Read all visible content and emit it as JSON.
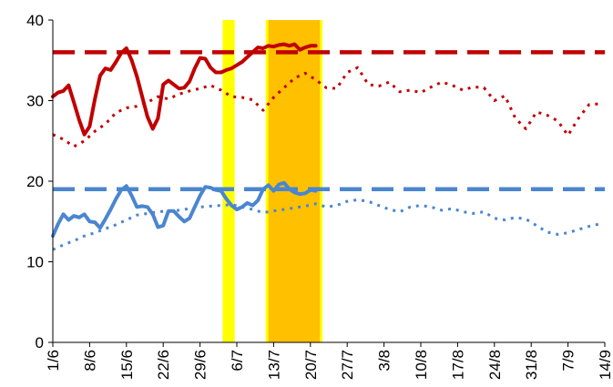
{
  "chart_data": {
    "type": "line",
    "title": "",
    "xlabel": "",
    "ylabel": "",
    "ylim": [
      0,
      40
    ],
    "yticks": [
      0,
      10,
      20,
      30,
      40
    ],
    "x_tick_labels": [
      "1/6",
      "8/6",
      "15/6",
      "22/6",
      "29/6",
      "6/7",
      "13/7",
      "20/7",
      "27/7",
      "3/8",
      "10/8",
      "17/8",
      "24/8",
      "31/8",
      "7/9",
      "14/9"
    ],
    "x_day_range": [
      1,
      106
    ],
    "grid": false,
    "legend": "none",
    "shaded_periods": [
      {
        "color": "#FFFF00",
        "start_day": 33.3,
        "end_day": 35.6
      },
      {
        "color": "#FFFF00",
        "start_day": 41.5,
        "end_day": 52.3
      },
      {
        "color": "#FFC000",
        "start_day": 42.0,
        "end_day": 51.8
      }
    ],
    "series": [
      {
        "color": "#C00000",
        "style": "solid",
        "x": [
          1,
          2,
          3,
          4,
          5,
          6,
          7,
          8,
          9,
          10,
          11,
          12,
          13,
          14,
          15,
          16,
          17,
          18,
          19,
          20,
          21,
          22,
          23,
          24,
          25,
          26,
          27,
          28,
          29,
          30,
          31,
          32,
          33,
          34,
          35,
          36,
          37,
          38,
          39,
          40,
          41,
          42,
          43,
          44,
          45,
          46,
          47,
          48,
          49,
          50,
          51
        ],
        "values": [
          30.5,
          31.0,
          31.2,
          31.9,
          29.8,
          27.6,
          25.8,
          26.8,
          30.2,
          33.1,
          34.0,
          33.8,
          34.8,
          35.9,
          36.5,
          35.0,
          33.0,
          30.5,
          28.0,
          26.5,
          27.8,
          32.0,
          32.5,
          32.0,
          31.5,
          31.6,
          32.4,
          34.0,
          35.3,
          35.2,
          34.1,
          33.5,
          33.5,
          33.8,
          34.0,
          34.4,
          34.8,
          35.4,
          36.0,
          36.6,
          36.5,
          36.8,
          36.7,
          36.9,
          37.0,
          36.8,
          37.0,
          36.3,
          36.6,
          36.8,
          36.8
        ]
      },
      {
        "color": "#C00000",
        "style": "dotted",
        "x": [
          1,
          3,
          5,
          7,
          9,
          11,
          13,
          15,
          17,
          19,
          21,
          23,
          25,
          27,
          29,
          31,
          33,
          35,
          37,
          39,
          41,
          43,
          45,
          47,
          49,
          51,
          53,
          55,
          57,
          59,
          61,
          63,
          65,
          67,
          69,
          71,
          73,
          75,
          77,
          79,
          81,
          83,
          85,
          87,
          89,
          91,
          93,
          95,
          97,
          99,
          101,
          103,
          105
        ],
        "values": [
          25.8,
          25.2,
          24.3,
          25.0,
          26.2,
          27.1,
          28.5,
          29.1,
          29.3,
          29.8,
          30.5,
          30.2,
          30.8,
          31.2,
          31.5,
          31.9,
          31.3,
          30.5,
          30.4,
          30.1,
          28.8,
          30.4,
          31.6,
          32.8,
          33.4,
          32.6,
          31.6,
          31.5,
          33.5,
          34.1,
          32.0,
          31.8,
          32.3,
          31.1,
          31.3,
          31.0,
          31.7,
          32.3,
          31.9,
          31.3,
          31.7,
          31.6,
          30.0,
          30.6,
          27.8,
          26.5,
          28.6,
          28.2,
          27.5,
          25.7,
          27.8,
          29.5,
          29.6
        ]
      },
      {
        "color": "#C00000",
        "style": "dashed",
        "constant": 36
      },
      {
        "color": "#4A86D0",
        "style": "solid",
        "x": [
          1,
          2,
          3,
          4,
          5,
          6,
          7,
          8,
          9,
          10,
          11,
          12,
          13,
          14,
          15,
          16,
          17,
          18,
          19,
          20,
          21,
          22,
          23,
          24,
          25,
          26,
          27,
          28,
          29,
          30,
          31,
          32,
          33,
          34,
          35,
          36,
          37,
          38,
          39,
          40,
          41,
          42,
          43,
          44,
          45,
          46,
          47,
          48,
          49,
          50,
          51
        ],
        "values": [
          13.2,
          14.7,
          15.9,
          15.2,
          15.7,
          15.5,
          15.9,
          15.0,
          14.9,
          14.2,
          15.3,
          16.5,
          17.8,
          18.9,
          19.4,
          18.2,
          16.8,
          16.9,
          16.8,
          15.9,
          14.3,
          14.5,
          16.3,
          16.3,
          15.6,
          15.0,
          15.4,
          16.8,
          18.2,
          19.3,
          19.2,
          18.9,
          18.8,
          17.8,
          17.0,
          16.5,
          16.8,
          17.3,
          17.0,
          17.6,
          19.0,
          19.5,
          18.8,
          19.6,
          19.8,
          19.0,
          18.6,
          18.4,
          18.5,
          18.9,
          18.8
        ]
      },
      {
        "color": "#4A86D0",
        "style": "dotted",
        "x": [
          1,
          3,
          5,
          7,
          9,
          11,
          13,
          15,
          17,
          19,
          21,
          23,
          25,
          27,
          29,
          31,
          33,
          35,
          37,
          39,
          41,
          43,
          45,
          47,
          49,
          51,
          53,
          55,
          57,
          59,
          61,
          63,
          65,
          67,
          69,
          71,
          73,
          75,
          77,
          79,
          81,
          83,
          85,
          87,
          89,
          91,
          93,
          95,
          97,
          99,
          101,
          103,
          105
        ],
        "values": [
          11.5,
          12.1,
          12.6,
          13.2,
          13.6,
          14.1,
          14.6,
          15.2,
          15.8,
          16.0,
          16.2,
          16.3,
          16.4,
          16.6,
          16.8,
          16.9,
          17.0,
          17.1,
          16.8,
          16.5,
          16.1,
          16.3,
          16.5,
          16.7,
          16.9,
          17.2,
          16.8,
          17.0,
          17.5,
          17.7,
          17.5,
          17.0,
          16.5,
          16.2,
          16.8,
          17.0,
          16.8,
          16.4,
          16.6,
          16.2,
          16.0,
          16.2,
          15.4,
          15.2,
          15.5,
          15.3,
          14.5,
          13.7,
          13.4,
          13.6,
          14.0,
          14.4,
          14.7
        ]
      },
      {
        "color": "#4A86D0",
        "style": "dashed",
        "constant": 19
      }
    ]
  }
}
